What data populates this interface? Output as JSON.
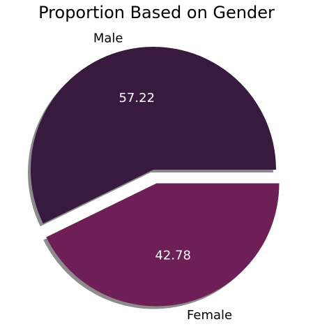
{
  "chart_data": {
    "type": "pie",
    "title": "Proportion Based on Gender",
    "categories": [
      "Male",
      "Female"
    ],
    "values": [
      57.22,
      42.78
    ],
    "value_labels": [
      "57.22",
      "42.78"
    ],
    "colors": [
      "#371a3e",
      "#6d1f56"
    ],
    "shadow": true,
    "exploded": [
      "Female"
    ]
  }
}
